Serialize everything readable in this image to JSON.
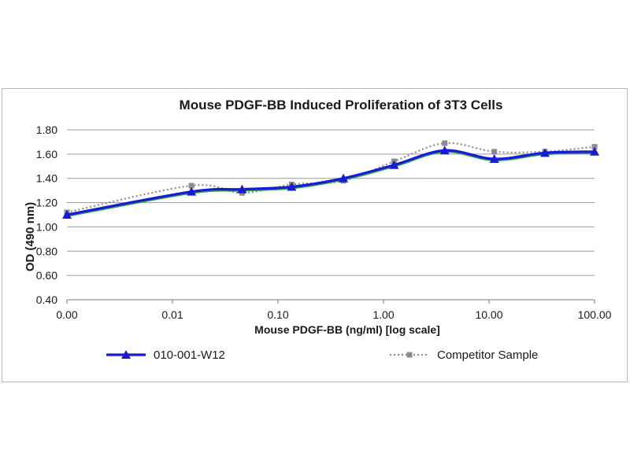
{
  "chart_data": {
    "type": "line",
    "title": "Mouse PDGF-BB Induced Proliferation of 3T3 Cells",
    "xlabel": "Mouse PDGF-BB (ng/ml) [log scale]",
    "ylabel": "OD (490 nm)",
    "x_tick_labels": [
      "0.00",
      "0.01",
      "0.10",
      "1.00",
      "10.00",
      "100.00"
    ],
    "y_tick_labels": [
      "0.40",
      "0.60",
      "0.80",
      "1.00",
      "1.20",
      "1.40",
      "1.60",
      "1.80"
    ],
    "ylim": [
      0.4,
      1.8
    ],
    "y_ticks": [
      0.4,
      0.6,
      0.8,
      1.0,
      1.2,
      1.4,
      1.6,
      1.8
    ],
    "x_log_decades": [
      -3,
      2
    ],
    "x_log10": [
      -3,
      -1.82,
      -1.34,
      -0.87,
      -0.38,
      0.1,
      0.58,
      1.05,
      1.53,
      2.0
    ],
    "grid": true,
    "legend_position": "bottom",
    "series": [
      {
        "name": "010-001-W12",
        "color": "#1a1ad6",
        "marker": "triangle",
        "line": "solid",
        "values": [
          1.1,
          1.29,
          1.31,
          1.33,
          1.4,
          1.51,
          1.63,
          1.56,
          1.61,
          1.62
        ]
      },
      {
        "name": "Competitor Sample",
        "color": "#8c8c8c",
        "marker": "square",
        "line": "dotted",
        "values": [
          1.12,
          1.34,
          1.28,
          1.35,
          1.38,
          1.54,
          1.69,
          1.62,
          1.62,
          1.66
        ]
      }
    ]
  }
}
